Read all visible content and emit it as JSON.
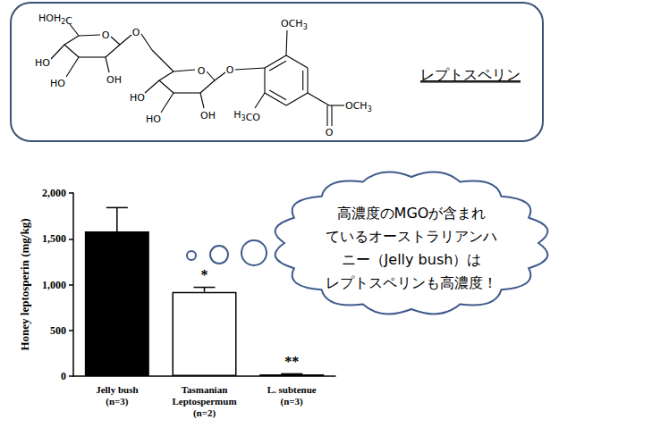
{
  "header_box": {
    "structure": {
      "labels": [
        "HOH2C",
        "O",
        "HO",
        "HO",
        "OH",
        "O",
        "O",
        "HO",
        "HO",
        "OH",
        "O",
        "OCH3",
        "H3CO",
        "O",
        "OCH3"
      ]
    },
    "name": "レプトスペリン"
  },
  "callout": {
    "lines": [
      "高濃度のMGOが含まれ",
      "ているオーストラリアンハ",
      "ニー（Jelly bush）は",
      "レプトスペリンも高濃度！"
    ]
  },
  "chart_data": {
    "type": "bar",
    "y_label": "Honey leptosperin (mg/kg)",
    "categories": [
      "Jelly bush\n(n=3)",
      "Tasmanian\nLeptospermum\n(n=2)",
      "L. subtenue\n(n=3)"
    ],
    "values": [
      1580,
      920,
      20
    ],
    "errors": [
      260,
      50,
      5
    ],
    "significance": [
      null,
      "*",
      "**"
    ],
    "colors": [
      "#000000",
      "#ffffff",
      "#000000"
    ],
    "ylim": [
      0,
      2000
    ],
    "yticks": [
      0,
      500,
      1000,
      1500,
      2000
    ],
    "grid": false
  }
}
